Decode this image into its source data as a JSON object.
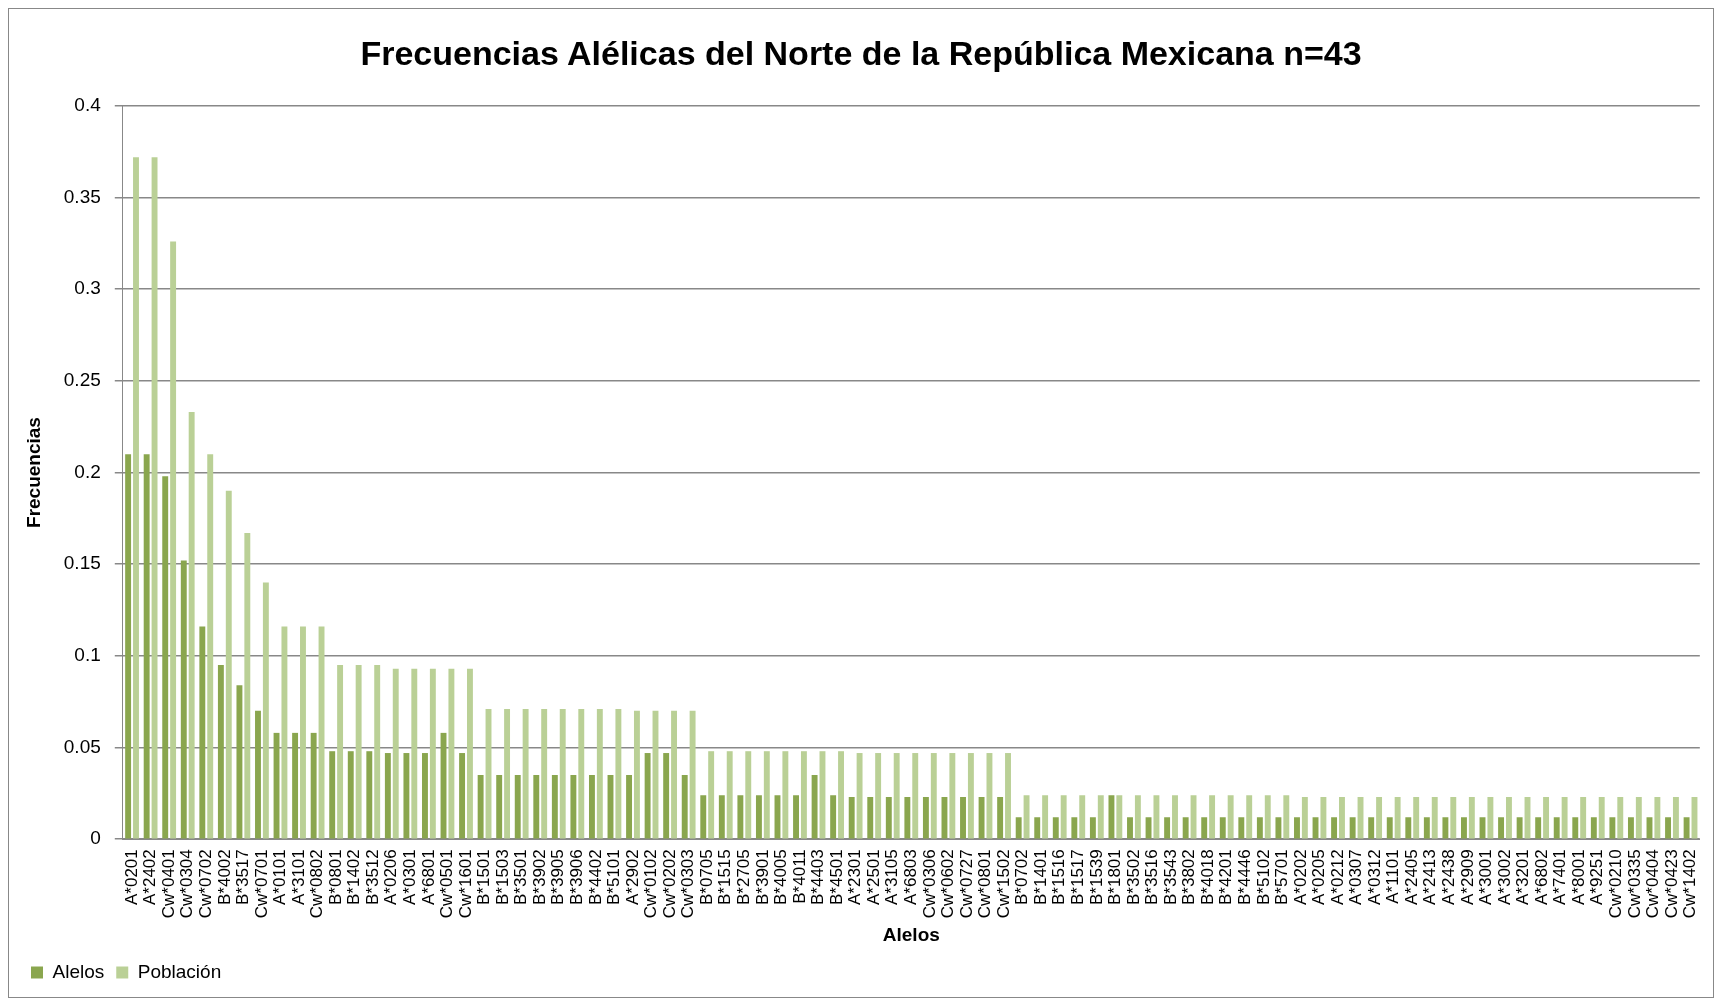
{
  "chart_data": {
    "type": "bar",
    "title": "Frecuencias Alélicas del Norte de la República Mexicana n=43",
    "xlabel": "Alelos",
    "ylabel": "Frecuencias",
    "categories": [
      "A*0201",
      "A*2402",
      "Cw*0401",
      "Cw*0304",
      "Cw*0702",
      "B*4002",
      "B*3517",
      "Cw*0701",
      "A*0101",
      "A*3101",
      "Cw*0802",
      "B*0801",
      "B*1402",
      "B*3512",
      "A*0206",
      "A*0301",
      "A*6801",
      "Cw*0501",
      "Cw*1601",
      "B*1501",
      "B*1503",
      "B*3501",
      "B*3902",
      "B*3905",
      "B*3906",
      "B*4402",
      "B*5101",
      "A*2902",
      "Cw*0102",
      "Cw*0202",
      "Cw*0303",
      "B*0705",
      "B*1515",
      "B*2705",
      "B*3901",
      "B*4005",
      "B*4011",
      "B*4403",
      "B*4501",
      "A*2301",
      "A*2501",
      "A*3105",
      "A*6803",
      "Cw*0306",
      "Cw*0602",
      "Cw*0727",
      "Cw*0801",
      "Cw*1502",
      "B*0702",
      "B*1401",
      "B*1516",
      "B*1517",
      "B*1539",
      "B*1801",
      "B*3502",
      "B*3516",
      "B*3543",
      "B*3802",
      "B*4018",
      "B*4201",
      "B*4446",
      "B*5102",
      "B*5701",
      "A*0202",
      "A*0205",
      "A*0212",
      "A*0307",
      "A*0312",
      "A*1101",
      "A*2405",
      "A*2413",
      "A*2438",
      "A*2909",
      "A*3001",
      "A*3002",
      "A*3201",
      "A*6802",
      "A*7401",
      "A*8001",
      "A*9251",
      "Cw*0210",
      "Cw*0335",
      "Cw*0404",
      "Cw*0423",
      "Cw*1402"
    ],
    "series": [
      {
        "name": "Alelos",
        "color": "#8aa64e",
        "values": [
          0.21,
          0.21,
          0.198,
          0.152,
          0.116,
          0.095,
          0.084,
          0.07,
          0.058,
          0.058,
          0.058,
          0.048,
          0.048,
          0.048,
          0.047,
          0.047,
          0.047,
          0.058,
          0.047,
          0.035,
          0.035,
          0.035,
          0.035,
          0.035,
          0.035,
          0.035,
          0.035,
          0.035,
          0.047,
          0.047,
          0.035,
          0.024,
          0.024,
          0.024,
          0.024,
          0.024,
          0.024,
          0.035,
          0.024,
          0.023,
          0.023,
          0.023,
          0.023,
          0.023,
          0.023,
          0.023,
          0.023,
          0.023,
          0.012,
          0.012,
          0.012,
          0.012,
          0.012,
          0.024,
          0.012,
          0.012,
          0.012,
          0.012,
          0.012,
          0.012,
          0.012,
          0.012,
          0.012,
          0.012,
          0.012,
          0.012,
          0.012,
          0.012,
          0.012,
          0.012,
          0.012,
          0.012,
          0.012,
          0.012,
          0.012,
          0.012,
          0.012,
          0.012,
          0.012,
          0.012,
          0.012,
          0.012,
          0.012,
          0.012,
          0.012
        ]
      },
      {
        "name": "Población",
        "color": "#bad096",
        "values": [
          0.372,
          0.372,
          0.326,
          0.233,
          0.21,
          0.19,
          0.167,
          0.14,
          0.116,
          0.116,
          0.116,
          0.095,
          0.095,
          0.095,
          0.093,
          0.093,
          0.093,
          0.093,
          0.093,
          0.071,
          0.071,
          0.071,
          0.071,
          0.071,
          0.071,
          0.071,
          0.071,
          0.07,
          0.07,
          0.07,
          0.07,
          0.048,
          0.048,
          0.048,
          0.048,
          0.048,
          0.048,
          0.048,
          0.048,
          0.047,
          0.047,
          0.047,
          0.047,
          0.047,
          0.047,
          0.047,
          0.047,
          0.047,
          0.024,
          0.024,
          0.024,
          0.024,
          0.024,
          0.024,
          0.024,
          0.024,
          0.024,
          0.024,
          0.024,
          0.024,
          0.024,
          0.024,
          0.024,
          0.023,
          0.023,
          0.023,
          0.023,
          0.023,
          0.023,
          0.023,
          0.023,
          0.023,
          0.023,
          0.023,
          0.023,
          0.023,
          0.023,
          0.023,
          0.023,
          0.023,
          0.023,
          0.023,
          0.023,
          0.023,
          0.023
        ]
      }
    ],
    "ylim": [
      0,
      0.4
    ],
    "yticks": [
      0,
      0.05,
      0.1,
      0.15,
      0.2,
      0.25,
      0.3,
      0.35,
      0.4
    ],
    "grid": "y",
    "legend": "bottom left"
  }
}
